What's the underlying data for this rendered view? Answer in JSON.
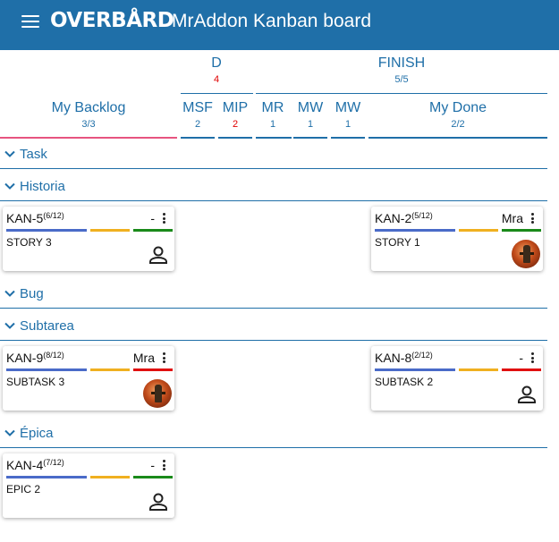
{
  "app": {
    "logo_text": "OVERBÅRD",
    "board_title": "MrAddon Kanban board"
  },
  "groups": {
    "d": {
      "title": "D",
      "count": "4"
    },
    "finish": {
      "title": "FINISH",
      "count": "5/5"
    }
  },
  "columns": [
    {
      "title": "My Backlog",
      "count": "3/3"
    },
    {
      "title": "MSF",
      "count": "2"
    },
    {
      "title": "MIP",
      "count": "2"
    },
    {
      "title": "MR",
      "count": "1"
    },
    {
      "title": "MW",
      "count": "1"
    },
    {
      "title": "MW",
      "count": "1"
    },
    {
      "title": "My Done",
      "count": "2/2"
    }
  ],
  "lanes": [
    {
      "label": "Task"
    },
    {
      "label": "Historia"
    },
    {
      "label": "Bug"
    },
    {
      "label": "Subtarea"
    },
    {
      "label": "Épica"
    }
  ],
  "cards": [
    {
      "key": "KAN-5",
      "progress": "(6/12)",
      "assignee": "-",
      "summary": "STORY 3",
      "avatar": "person-icon"
    },
    {
      "key": "KAN-2",
      "progress": "(5/12)",
      "assignee": "Mra",
      "summary": "STORY 1",
      "avatar": "user-photo"
    },
    {
      "key": "KAN-9",
      "progress": "(8/12)",
      "assignee": "Mra",
      "summary": "SUBTASK 3",
      "avatar": "user-photo"
    },
    {
      "key": "KAN-8",
      "progress": "(2/12)",
      "assignee": "-",
      "summary": "SUBTASK 2",
      "avatar": "person-icon"
    },
    {
      "key": "KAN-4",
      "progress": "(7/12)",
      "assignee": "-",
      "summary": "EPIC 2",
      "avatar": "person-icon"
    }
  ],
  "colors": {
    "primary": "#1f6fa8",
    "active_column_underline": "#e75480",
    "wip_exceeded": "#e00000",
    "bar_blue": "#4a6bc8",
    "bar_yellow": "#f0b020",
    "bar_green": "#1a8a1a",
    "bar_red": "#e01010"
  }
}
